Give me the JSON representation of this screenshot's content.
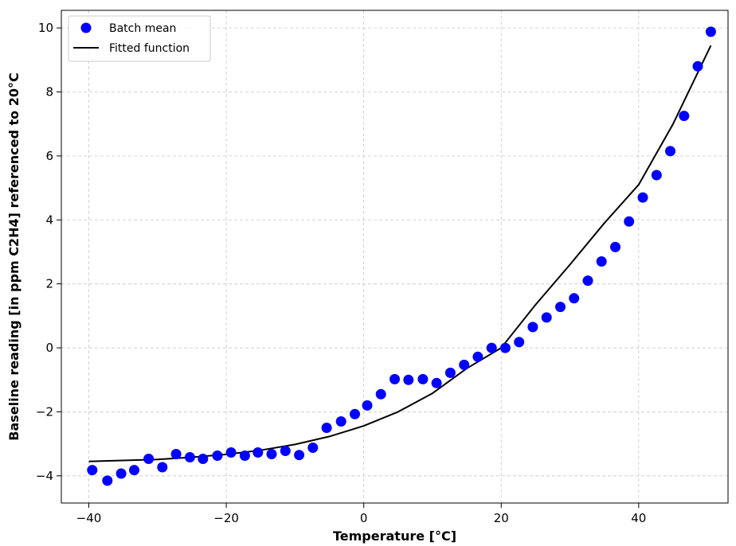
{
  "chart_data": {
    "type": "scatter",
    "xlabel": "Temperature [°C]",
    "ylabel": "Baseline reading [in ppm C2H4] referenced to 20°C",
    "xlim": [
      -44,
      53
    ],
    "ylim": [
      -4.85,
      10.55
    ],
    "x_ticks": [
      -40,
      -20,
      0,
      20,
      40
    ],
    "x_tick_labels": [
      "−40",
      "−20",
      "0",
      "20",
      "40"
    ],
    "y_ticks": [
      -4,
      -2,
      0,
      2,
      4,
      6,
      8,
      10
    ],
    "y_tick_labels": [
      "−4",
      "−2",
      "0",
      "2",
      "4",
      "6",
      "8",
      "10"
    ],
    "grid": true,
    "legend_position": "upper-left",
    "legend": [
      {
        "label": "Batch mean",
        "marker": "circle",
        "color": "#0000ff"
      },
      {
        "label": "Fitted function",
        "marker": "line",
        "color": "#000000"
      }
    ],
    "series": [
      {
        "name": "Batch mean",
        "kind": "scatter",
        "color": "#0000ff",
        "x": [
          -39.5,
          -37.3,
          -35.3,
          -33.4,
          -31.3,
          -29.3,
          -27.3,
          -25.3,
          -23.4,
          -21.3,
          -19.3,
          -17.3,
          -15.4,
          -13.4,
          -11.4,
          -9.4,
          -7.4,
          -5.4,
          -3.3,
          -1.3,
          0.5,
          2.5,
          4.5,
          6.5,
          8.6,
          10.6,
          12.6,
          14.6,
          16.6,
          18.6,
          20.6,
          22.6,
          24.6,
          26.6,
          28.6,
          30.6,
          32.6,
          34.6,
          36.6,
          38.6,
          40.6,
          42.6,
          44.6,
          46.6,
          48.6,
          50.5
        ],
        "y": [
          -3.82,
          -4.15,
          -3.93,
          -3.82,
          -3.47,
          -3.73,
          -3.32,
          -3.42,
          -3.47,
          -3.37,
          -3.27,
          -3.37,
          -3.27,
          -3.32,
          -3.22,
          -3.35,
          -3.12,
          -2.5,
          -2.3,
          -2.07,
          -1.8,
          -1.45,
          -0.98,
          -1.0,
          -0.98,
          -1.1,
          -0.78,
          -0.53,
          -0.28,
          0.0,
          0.0,
          0.18,
          0.65,
          0.95,
          1.28,
          1.55,
          2.1,
          2.7,
          3.15,
          3.95,
          4.7,
          5.4,
          6.15,
          7.25,
          8.8,
          9.88
        ]
      },
      {
        "name": "Fitted function",
        "kind": "line",
        "color": "#000000",
        "x": [
          -40,
          -35,
          -30,
          -25,
          -20,
          -15,
          -10,
          -5,
          0,
          5,
          10,
          15,
          20,
          25,
          30,
          35,
          40,
          45,
          50.5
        ],
        "y": [
          -3.55,
          -3.52,
          -3.49,
          -3.42,
          -3.33,
          -3.2,
          -3.02,
          -2.77,
          -2.44,
          -2.0,
          -1.42,
          -0.64,
          0.0,
          1.35,
          2.6,
          3.9,
          5.1,
          7.0,
          9.45
        ]
      }
    ]
  }
}
